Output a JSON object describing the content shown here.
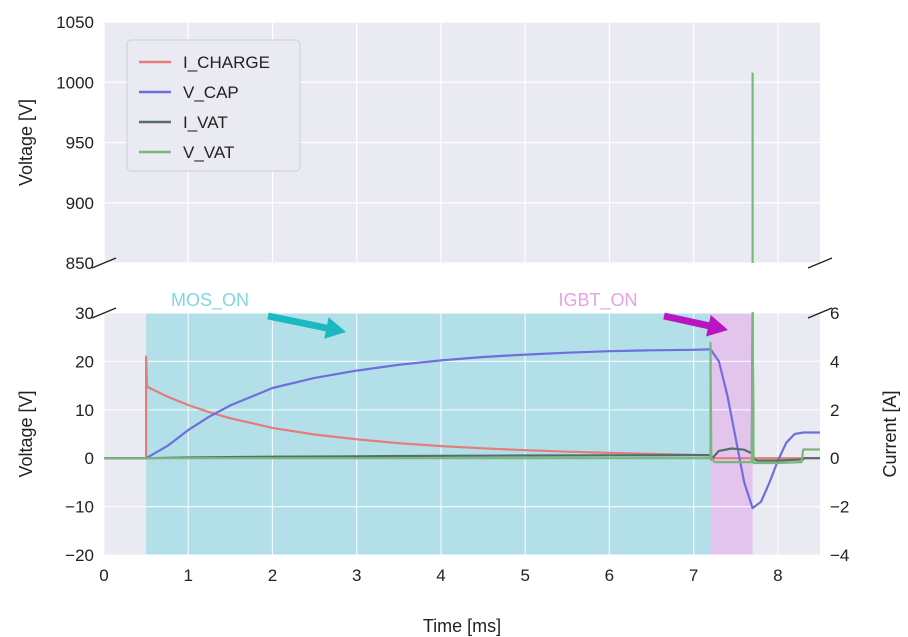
{
  "chart_data": {
    "type": "line",
    "xlabel": "Time [ms]",
    "xlim": [
      0,
      8.5
    ],
    "x_ticks": [
      0,
      1,
      2,
      3,
      4,
      5,
      6,
      7,
      8
    ],
    "upper_panel": {
      "ylabel": "Voltage [V]",
      "ylim": [
        850,
        1050
      ],
      "y_ticks": [
        850,
        900,
        950,
        1000,
        1050
      ]
    },
    "lower_panel": {
      "ylabel_left": "Voltage [V]",
      "ylim_left": [
        -20,
        30
      ],
      "y_ticks_left": [
        -20,
        -10,
        0,
        10,
        20,
        30
      ],
      "ylabel_right": "Current [A]",
      "ylim_right": [
        -4,
        6
      ],
      "y_ticks_right": [
        -4,
        -2,
        0,
        2,
        4,
        6
      ]
    },
    "grid": true,
    "legend_position": "top-left",
    "series": [
      {
        "name": "I_CHARGE",
        "color": "#e57c7c",
        "axis": "right",
        "points": [
          [
            0,
            0
          ],
          [
            0.5,
            0
          ],
          [
            0.5,
            4.2
          ],
          [
            0.51,
            2.95
          ],
          [
            0.75,
            2.55
          ],
          [
            1.0,
            2.2
          ],
          [
            1.25,
            1.9
          ],
          [
            1.5,
            1.65
          ],
          [
            2.0,
            1.25
          ],
          [
            2.5,
            0.98
          ],
          [
            3.0,
            0.78
          ],
          [
            3.5,
            0.62
          ],
          [
            4.0,
            0.5
          ],
          [
            4.5,
            0.41
          ],
          [
            5.0,
            0.33
          ],
          [
            5.5,
            0.27
          ],
          [
            6.0,
            0.22
          ],
          [
            6.5,
            0.18
          ],
          [
            7.0,
            0.14
          ],
          [
            7.2,
            0.12
          ],
          [
            7.21,
            0
          ],
          [
            8.5,
            0
          ]
        ]
      },
      {
        "name": "V_CAP",
        "color": "#6f6fdc",
        "axis": "left",
        "points": [
          [
            0,
            0
          ],
          [
            0.5,
            0
          ],
          [
            0.75,
            2.5
          ],
          [
            1.0,
            5.8
          ],
          [
            1.25,
            8.6
          ],
          [
            1.5,
            10.9
          ],
          [
            2.0,
            14.5
          ],
          [
            2.5,
            16.6
          ],
          [
            3.0,
            18.1
          ],
          [
            3.5,
            19.3
          ],
          [
            4.0,
            20.2
          ],
          [
            4.5,
            20.9
          ],
          [
            5.0,
            21.4
          ],
          [
            5.5,
            21.8
          ],
          [
            6.0,
            22.1
          ],
          [
            6.5,
            22.3
          ],
          [
            7.0,
            22.4
          ],
          [
            7.2,
            22.5
          ],
          [
            7.3,
            20
          ],
          [
            7.4,
            13
          ],
          [
            7.5,
            4
          ],
          [
            7.6,
            -5
          ],
          [
            7.7,
            -10.3
          ],
          [
            7.8,
            -9
          ],
          [
            7.9,
            -5
          ],
          [
            8.0,
            -0.5
          ],
          [
            8.1,
            3.2
          ],
          [
            8.2,
            5.0
          ],
          [
            8.3,
            5.3
          ],
          [
            8.5,
            5.3
          ]
        ]
      },
      {
        "name": "I_VAT",
        "color": "#546e6e",
        "axis": "right",
        "points": [
          [
            0,
            0
          ],
          [
            0.5,
            0
          ],
          [
            1.0,
            0.03
          ],
          [
            2.0,
            0.06
          ],
          [
            3.0,
            0.08
          ],
          [
            4.0,
            0.1
          ],
          [
            5.0,
            0.11
          ],
          [
            6.0,
            0.12
          ],
          [
            7.0,
            0.13
          ],
          [
            7.2,
            0.13
          ],
          [
            7.21,
            -0.05
          ],
          [
            7.3,
            0.3
          ],
          [
            7.45,
            0.4
          ],
          [
            7.6,
            0.35
          ],
          [
            7.69,
            0.2
          ],
          [
            7.7,
            6.0
          ],
          [
            7.71,
            0
          ],
          [
            7.75,
            -0.1
          ],
          [
            8.0,
            -0.1
          ],
          [
            8.3,
            -0.05
          ],
          [
            8.31,
            0
          ],
          [
            8.5,
            0
          ]
        ]
      },
      {
        "name": "V_VAT",
        "color": "#7ab87a",
        "axis": "left",
        "points": [
          [
            0,
            0
          ],
          [
            7.2,
            0
          ],
          [
            7.2,
            23.8
          ],
          [
            7.21,
            0
          ],
          [
            7.25,
            -0.8
          ],
          [
            7.5,
            -0.8
          ],
          [
            7.69,
            -0.8
          ],
          [
            7.7,
            1008
          ],
          [
            7.71,
            -1
          ],
          [
            8.0,
            -1
          ],
          [
            8.28,
            -0.8
          ],
          [
            8.3,
            1.8
          ],
          [
            8.5,
            1.8
          ]
        ]
      }
    ],
    "shaded_regions": [
      {
        "label": "MOS_ON",
        "x_start": 0.5,
        "x_end": 7.2,
        "color": "#a9dde6"
      },
      {
        "label": "IGBT_ON",
        "x_start": 7.2,
        "x_end": 7.7,
        "color": "#e2bdeb"
      }
    ],
    "annotations": [
      {
        "text": "MOS_ON",
        "color": "#7fd7e0",
        "arrow_color": "#1ab9c2"
      },
      {
        "text": "IGBT_ON",
        "color": "#e6a2e6",
        "arrow_color": "#bb14c4"
      }
    ]
  }
}
